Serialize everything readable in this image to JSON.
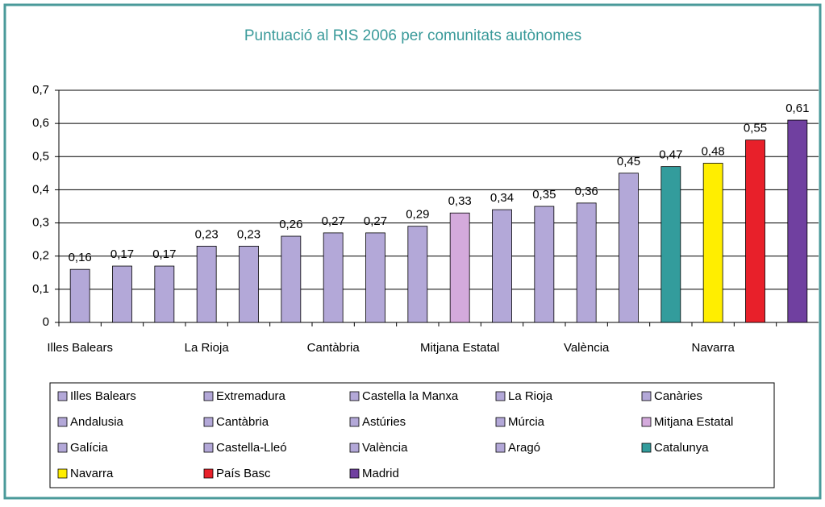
{
  "chart_data": {
    "type": "bar",
    "title": "Puntuació al RIS 2006 per comunitats autònomes",
    "categories": [
      "Illes Balears",
      "Extremadura",
      "Castella la Manxa",
      "La Rioja",
      "Canàries",
      "Andalusia",
      "Cantàbria",
      "Astúries",
      "Múrcia",
      "Mitjana Estatal",
      "Galícia",
      "Castella-Lleó",
      "València",
      "Aragó",
      "Catalunya",
      "Navarra",
      "País Basc",
      "Madrid"
    ],
    "values": [
      0.16,
      0.17,
      0.17,
      0.23,
      0.23,
      0.26,
      0.27,
      0.27,
      0.29,
      0.33,
      0.34,
      0.35,
      0.36,
      0.45,
      0.47,
      0.48,
      0.55,
      0.61
    ],
    "value_labels": [
      "0,16",
      "0,17",
      "0,17",
      "0,23",
      "0,23",
      "0,26",
      "0,27",
      "0,27",
      "0,29",
      "0,33",
      "0,34",
      "0,35",
      "0,36",
      "0,45",
      "0,47",
      "0,48",
      "0,55",
      "0,61"
    ],
    "colors": [
      "#b3a8d8",
      "#b3a8d8",
      "#b3a8d8",
      "#b3a8d8",
      "#b3a8d8",
      "#b3a8d8",
      "#b3a8d8",
      "#b3a8d8",
      "#b3a8d8",
      "#d4aadc",
      "#b3a8d8",
      "#b3a8d8",
      "#b3a8d8",
      "#b3a8d8",
      "#339c9c",
      "#ffee00",
      "#e8202a",
      "#7040a0"
    ],
    "ylim": [
      0,
      0.7
    ],
    "yticks": [
      0,
      {
        "value": 0.1,
        "label": "0,1"
      },
      {
        "value": 0.2,
        "label": "0,2"
      },
      {
        "value": 0.3,
        "label": "0,3"
      },
      {
        "value": 0.4,
        "label": "0,4"
      },
      {
        "value": 0.5,
        "label": "0,5"
      },
      {
        "value": 0.6,
        "label": "0,6"
      },
      {
        "value": 0.7,
        "label": "0,7"
      }
    ],
    "grid": true
  }
}
